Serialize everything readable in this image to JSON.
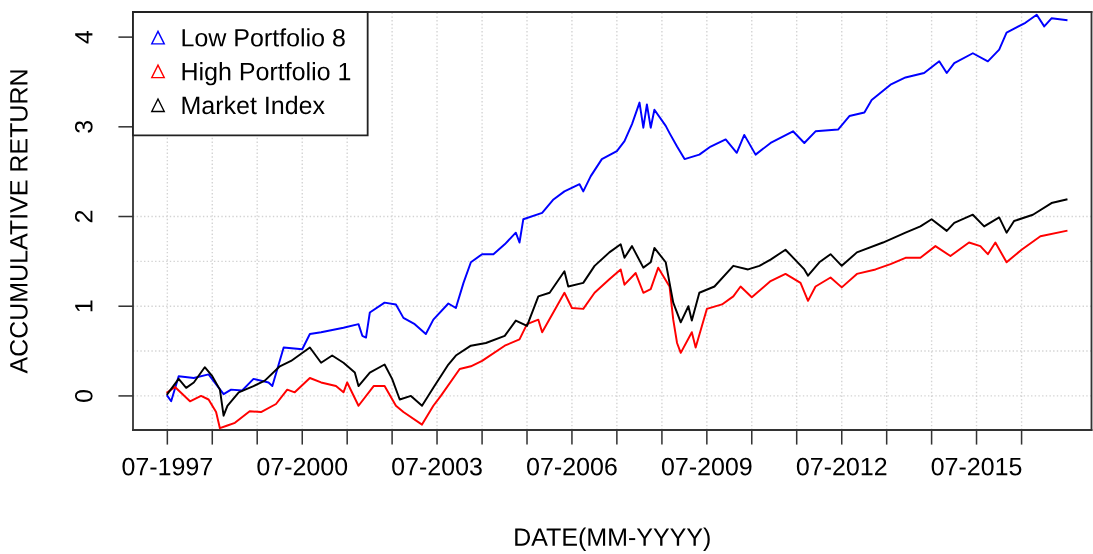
{
  "chart_data": {
    "type": "line",
    "xlabel": "DATE(MM-YYYY)",
    "ylabel": "ACCUMULATIVE RETURN",
    "xlim": [
      "1996-09-25",
      "2018-01-20"
    ],
    "ylim": [
      -0.38,
      4.28
    ],
    "xticks": [
      {
        "value": "1997-07",
        "label": "07-1997"
      },
      {
        "value": "1998-07",
        "label": null
      },
      {
        "value": "1999-07",
        "label": null
      },
      {
        "value": "2000-07",
        "label": "07-2000"
      },
      {
        "value": "2001-07",
        "label": null
      },
      {
        "value": "2002-07",
        "label": null
      },
      {
        "value": "2003-07",
        "label": "07-2003"
      },
      {
        "value": "2004-07",
        "label": null
      },
      {
        "value": "2005-07",
        "label": null
      },
      {
        "value": "2006-07",
        "label": "07-2006"
      },
      {
        "value": "2007-07",
        "label": null
      },
      {
        "value": "2008-07",
        "label": null
      },
      {
        "value": "2009-07",
        "label": "07-2009"
      },
      {
        "value": "2010-07",
        "label": null
      },
      {
        "value": "2011-07",
        "label": null
      },
      {
        "value": "2012-07",
        "label": "07-2012"
      },
      {
        "value": "2013-07",
        "label": null
      },
      {
        "value": "2014-07",
        "label": null
      },
      {
        "value": "2015-07",
        "label": "07-2015"
      },
      {
        "value": "2016-07",
        "label": null
      }
    ],
    "yticks": [
      0,
      1,
      2,
      3,
      4
    ],
    "grid": "x",
    "ref_lines": [
      {
        "axis": "y",
        "value": 0,
        "color": "#d3d3d3",
        "line_style": "dotted"
      },
      {
        "axis": "y",
        "value": 0.5,
        "color": "#d3d3d3",
        "line_style": "dotted"
      },
      {
        "axis": "y",
        "value": 1,
        "color": "#d3d3d3",
        "line_style": "dotted"
      },
      {
        "axis": "y",
        "value": 1.5,
        "color": "#d3d3d3",
        "line_style": "dotted"
      },
      {
        "axis": "y",
        "value": 2,
        "color": "#d3d3d3",
        "line_style": "dotted"
      }
    ],
    "legend": "top left",
    "line_style": "solid",
    "series": [
      {
        "name": "Low Portfolio 8",
        "color": "#0000ff",
        "x": [
          "1997-07",
          "1997-08",
          "1997-10",
          "1998-02",
          "1998-06",
          "1998-10",
          "1998-12",
          "1999-03",
          "1999-06",
          "1999-10",
          "1999-11",
          "2000-02",
          "2000-07",
          "2000-09",
          "2000-12",
          "2001-06",
          "2001-10",
          "2001-11",
          "2001-12",
          "2002-01",
          "2002-05",
          "2002-08",
          "2002-10",
          "2003-01",
          "2003-04",
          "2003-06",
          "2003-10",
          "2003-12",
          "2004-02",
          "2004-04",
          "2004-07",
          "2004-10",
          "2005-01",
          "2005-04",
          "2005-05",
          "2005-06",
          "2005-11",
          "2006-02",
          "2006-05",
          "2006-09",
          "2006-10",
          "2006-12",
          "2007-03",
          "2007-07",
          "2007-09",
          "2007-11",
          "2008-01",
          "2008-02",
          "2008-03",
          "2008-04",
          "2008-05",
          "2008-08",
          "2008-09",
          "2008-11",
          "2009-01",
          "2009-05",
          "2009-08",
          "2009-12",
          "2010-03",
          "2010-05",
          "2010-08",
          "2010-12",
          "2011-06",
          "2011-09",
          "2011-12",
          "2012-06",
          "2012-09",
          "2013-01",
          "2013-03",
          "2013-08",
          "2013-12",
          "2014-05",
          "2014-09",
          "2014-11",
          "2015-01",
          "2015-06",
          "2015-10",
          "2016-01",
          "2016-03",
          "2016-08",
          "2016-11",
          "2017-01",
          "2017-03",
          "2017-07"
        ],
        "values": [
          0.0,
          -0.06,
          0.22,
          0.2,
          0.24,
          0.02,
          0.07,
          0.06,
          0.19,
          0.15,
          0.11,
          0.54,
          0.52,
          0.69,
          0.71,
          0.76,
          0.8,
          0.67,
          0.65,
          0.93,
          1.04,
          1.02,
          0.87,
          0.8,
          0.69,
          0.85,
          1.03,
          0.98,
          1.26,
          1.49,
          1.58,
          1.58,
          1.69,
          1.82,
          1.71,
          1.97,
          2.04,
          2.19,
          2.28,
          2.36,
          2.28,
          2.45,
          2.64,
          2.73,
          2.84,
          3.03,
          3.27,
          2.99,
          3.25,
          2.99,
          3.19,
          3.01,
          2.93,
          2.78,
          2.64,
          2.69,
          2.78,
          2.86,
          2.71,
          2.91,
          2.69,
          2.82,
          2.95,
          2.82,
          2.95,
          2.97,
          3.12,
          3.16,
          3.3,
          3.47,
          3.55,
          3.6,
          3.73,
          3.6,
          3.71,
          3.82,
          3.73,
          3.86,
          4.05,
          4.16,
          4.25,
          4.12,
          4.21,
          4.19
        ]
      },
      {
        "name": "High Portfolio 1",
        "color": "#ff0000",
        "x": [
          "1997-07",
          "1997-09",
          "1997-10",
          "1998-01",
          "1998-04",
          "1998-06",
          "1998-08",
          "1998-09",
          "1998-11",
          "1999-01",
          "1999-05",
          "1999-08",
          "1999-12",
          "2000-03",
          "2000-05",
          "2000-09",
          "2000-12",
          "2001-04",
          "2001-06",
          "2001-07",
          "2001-10",
          "2002-02",
          "2002-05",
          "2002-08",
          "2002-10",
          "2003-03",
          "2003-06",
          "2003-08",
          "2004-01",
          "2004-04",
          "2004-07",
          "2005-01",
          "2005-05",
          "2005-07",
          "2005-10",
          "2005-11",
          "2006-05",
          "2006-07",
          "2006-10",
          "2007-01",
          "2007-05",
          "2007-08",
          "2007-09",
          "2007-12",
          "2008-02",
          "2008-04",
          "2008-06",
          "2008-09",
          "2008-10",
          "2008-11",
          "2008-12",
          "2009-03",
          "2009-04",
          "2009-07",
          "2009-11",
          "2010-02",
          "2010-04",
          "2010-07",
          "2010-12",
          "2011-04",
          "2011-08",
          "2011-10",
          "2011-12",
          "2012-04",
          "2012-07",
          "2012-11",
          "2013-04",
          "2013-08",
          "2013-12",
          "2014-04",
          "2014-08",
          "2014-12",
          "2015-05",
          "2015-08",
          "2015-10",
          "2015-12",
          "2016-03",
          "2016-07",
          "2016-12",
          "2017-07"
        ],
        "values": [
          0.04,
          0.1,
          0.06,
          -0.06,
          0.0,
          -0.04,
          -0.18,
          -0.36,
          -0.33,
          -0.3,
          -0.17,
          -0.18,
          -0.09,
          0.07,
          0.04,
          0.2,
          0.15,
          0.11,
          0.04,
          0.15,
          -0.11,
          0.11,
          0.11,
          -0.11,
          -0.18,
          -0.32,
          -0.11,
          0.0,
          0.3,
          0.33,
          0.39,
          0.56,
          0.63,
          0.8,
          0.85,
          0.71,
          1.15,
          0.98,
          0.97,
          1.15,
          1.3,
          1.41,
          1.24,
          1.37,
          1.15,
          1.19,
          1.43,
          1.22,
          0.85,
          0.59,
          0.48,
          0.71,
          0.54,
          0.97,
          1.02,
          1.11,
          1.22,
          1.1,
          1.28,
          1.36,
          1.26,
          1.06,
          1.22,
          1.32,
          1.21,
          1.36,
          1.41,
          1.47,
          1.54,
          1.54,
          1.67,
          1.56,
          1.71,
          1.67,
          1.58,
          1.71,
          1.49,
          1.63,
          1.78,
          1.84
        ]
      },
      {
        "name": "Market Index",
        "color": "#000000",
        "x": [
          "1997-07",
          "1997-10",
          "1997-12",
          "1998-02",
          "1998-05",
          "1998-07",
          "1998-09",
          "1998-10",
          "1998-11",
          "1999-02",
          "1999-06",
          "1999-09",
          "2000-01",
          "2000-04",
          "2000-09",
          "2000-12",
          "2001-03",
          "2001-06",
          "2001-09",
          "2001-10",
          "2002-01",
          "2002-05",
          "2002-07",
          "2002-09",
          "2002-12",
          "2003-03",
          "2003-06",
          "2003-10",
          "2003-12",
          "2004-04",
          "2004-08",
          "2005-01",
          "2005-04",
          "2005-07",
          "2005-10",
          "2006-01",
          "2006-05",
          "2006-06",
          "2006-10",
          "2007-01",
          "2007-05",
          "2007-08",
          "2007-09",
          "2007-11",
          "2008-02",
          "2008-04",
          "2008-05",
          "2008-08",
          "2008-09",
          "2008-10",
          "2008-12",
          "2009-02",
          "2009-03",
          "2009-05",
          "2009-09",
          "2010-02",
          "2010-06",
          "2010-09",
          "2010-12",
          "2011-04",
          "2011-09",
          "2011-10",
          "2012-01",
          "2012-04",
          "2012-07",
          "2012-11",
          "2013-06",
          "2013-12",
          "2014-04",
          "2014-07",
          "2014-11",
          "2015-01",
          "2015-06",
          "2015-09",
          "2016-01",
          "2016-03",
          "2016-05",
          "2016-10",
          "2017-03",
          "2017-07"
        ],
        "values": [
          0.02,
          0.19,
          0.09,
          0.15,
          0.32,
          0.22,
          0.07,
          -0.22,
          -0.11,
          0.04,
          0.11,
          0.17,
          0.33,
          0.39,
          0.54,
          0.37,
          0.45,
          0.37,
          0.26,
          0.11,
          0.26,
          0.35,
          0.19,
          -0.04,
          0.0,
          -0.11,
          0.09,
          0.35,
          0.45,
          0.56,
          0.59,
          0.67,
          0.84,
          0.78,
          1.11,
          1.15,
          1.39,
          1.22,
          1.26,
          1.45,
          1.6,
          1.69,
          1.54,
          1.67,
          1.43,
          1.49,
          1.65,
          1.49,
          1.26,
          1.04,
          0.82,
          1.0,
          0.84,
          1.15,
          1.22,
          1.45,
          1.41,
          1.45,
          1.52,
          1.63,
          1.41,
          1.34,
          1.49,
          1.58,
          1.45,
          1.6,
          1.71,
          1.82,
          1.89,
          1.97,
          1.84,
          1.93,
          2.02,
          1.89,
          1.99,
          1.82,
          1.95,
          2.02,
          2.15,
          2.19
        ]
      }
    ]
  }
}
